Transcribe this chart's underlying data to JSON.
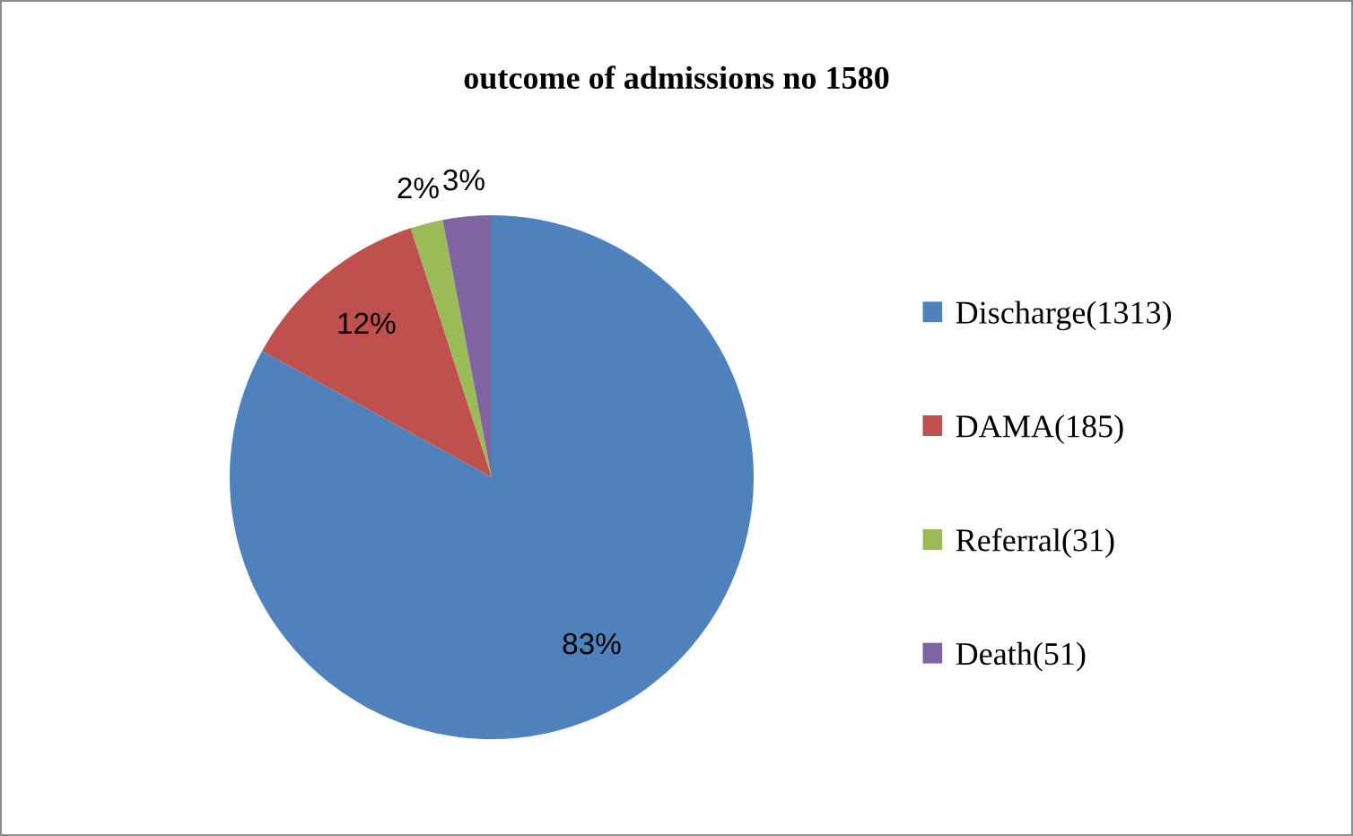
{
  "chart_data": {
    "type": "pie",
    "title": "outcome of admissions no 1580",
    "categories": [
      "Discharge(1313)",
      "DAMA(185)",
      "Referral(31)",
      "Death(51)"
    ],
    "values": [
      83,
      12,
      2,
      3
    ],
    "value_labels": [
      "83%",
      "12%",
      "2%",
      "3%"
    ],
    "colors": [
      "#4f81bd",
      "#c0504d",
      "#9bbb59",
      "#8064a2"
    ],
    "legend": "right"
  }
}
